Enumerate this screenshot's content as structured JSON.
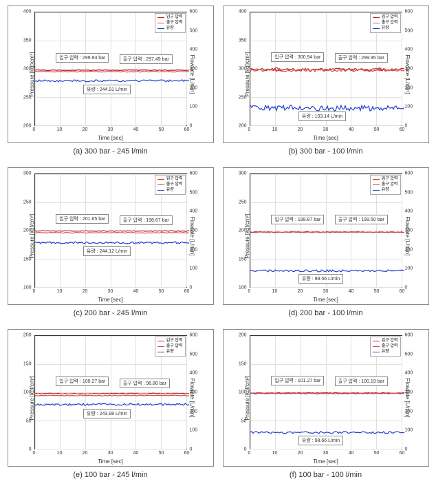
{
  "axis": {
    "xlabel": "Time [sec]",
    "ylabel_left": "Pressure [kgf/cm²]",
    "ylabel_right": "Flowrate [L/min]",
    "x_ticks": [
      0,
      10,
      20,
      30,
      40,
      50,
      60
    ],
    "right_ticks": [
      0,
      100,
      200,
      300,
      400,
      500,
      600
    ]
  },
  "legend": {
    "inlet": "입구 압력",
    "outlet": "출구 압력",
    "flow": "유량"
  },
  "colors": {
    "inlet": "#cc2020",
    "outlet": "#c85050",
    "flow": "#2040cc",
    "grid": "#e0e0e0",
    "border": "#333333",
    "text": "#333333"
  },
  "fonts": {
    "axis_label": 8,
    "tick": 7,
    "legend": 6,
    "annot": 7,
    "caption": 11
  },
  "charts": [
    {
      "caption": "(a) 300 bar - 245 l/min",
      "ylim_left": [
        200,
        400
      ],
      "ytick_step_left": 50,
      "inlet_label": "입구 압력 : 299.93 bar",
      "outlet_label": "출구 압력 : 297.49 bar",
      "flow_label": "유량 : 244.91 L/min",
      "inlet_value": 299.93,
      "outlet_value": 297.49,
      "flow_value": 244.91,
      "noisy": false
    },
    {
      "caption": "(b) 300 bar - 100 l/min",
      "ylim_left": [
        200,
        400
      ],
      "ytick_step_left": 50,
      "inlet_label": "입구 압력 : 300.94 bar",
      "outlet_label": "출구 압력 : 299.95 bar",
      "flow_label": "유량 : 103.14 L/min",
      "inlet_value": 300.94,
      "outlet_value": 299.95,
      "flow_value": 103.14,
      "noisy": true
    },
    {
      "caption": "(c) 200 bar - 245 l/min",
      "ylim_left": [
        100,
        300
      ],
      "ytick_step_left": 50,
      "inlet_label": "입구 압력 : 201.65 bar",
      "outlet_label": "출구 압력 : 198.67 bar",
      "flow_label": "유량 : 244.12 L/min",
      "inlet_value": 201.65,
      "outlet_value": 198.67,
      "flow_value": 244.12,
      "noisy": false
    },
    {
      "caption": "(d) 200 bar - 100 l/min",
      "ylim_left": [
        100,
        300
      ],
      "ytick_step_left": 50,
      "inlet_label": "입구 압력 : 199.87 bar",
      "outlet_label": "출구 압력 : 199.50 bar",
      "flow_label": "유량 : 98.56 L/min",
      "inlet_value": 199.87,
      "outlet_value": 199.5,
      "flow_value": 98.56,
      "noisy": false
    },
    {
      "caption": "(e) 100 bar - 245 l/min",
      "ylim_left": [
        0,
        200
      ],
      "ytick_step_left": 50,
      "inlet_label": "입구 압력 : 100.27 bar",
      "outlet_label": "출구 압력 : 96.80 bar",
      "flow_label": "유량 : 243.98 L/min",
      "inlet_value": 100.27,
      "outlet_value": 96.8,
      "flow_value": 243.98,
      "noisy": false
    },
    {
      "caption": "(f) 100 bar - 100 l/min",
      "ylim_left": [
        0,
        200
      ],
      "ytick_step_left": 50,
      "inlet_label": "입구 압력 : 101.27 bar",
      "outlet_label": "출구 압력 : 100.19 bar",
      "flow_label": "유량 : 98.66 L/min",
      "inlet_value": 101.27,
      "outlet_value": 100.19,
      "flow_value": 98.66,
      "noisy": false
    }
  ]
}
